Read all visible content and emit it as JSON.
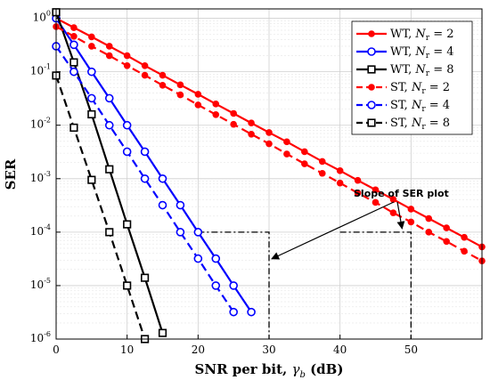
{
  "chart_data": {
    "type": "line",
    "xlabel_main": "SNR per bit, ",
    "xlabel_sym": "γ",
    "xlabel_sub": "b",
    "xlabel_unit": " (dB)",
    "ylabel": "SER",
    "xlim": [
      0,
      60
    ],
    "ylim": [
      1e-06,
      1.5
    ],
    "yscale": "log",
    "grid": true,
    "legend_position": "top-right",
    "x_ticks": [
      "0",
      "10",
      "20",
      "30",
      "40",
      "50"
    ],
    "y_ticks": [
      {
        "base": "10",
        "exp": "0"
      },
      {
        "base": "10",
        "exp": "-1"
      },
      {
        "base": "10",
        "exp": "-2"
      },
      {
        "base": "10",
        "exp": "-3"
      },
      {
        "base": "10",
        "exp": "-4"
      },
      {
        "base": "10",
        "exp": "-5"
      },
      {
        "base": "10",
        "exp": "-6"
      }
    ],
    "series": [
      {
        "name": "WT, Nr = 2",
        "prefix": "WT, ",
        "sub": "r",
        "val": "2",
        "color": "#ff0000",
        "dash": false,
        "marker": "dot",
        "x": [
          0,
          2.5,
          5,
          7.5,
          10,
          12.5,
          15,
          17.5,
          20,
          22.5,
          25,
          27.5,
          30,
          32.5,
          35,
          37.5,
          40,
          42.5,
          45,
          47.5,
          50,
          52.5,
          55,
          57.5,
          60
        ],
        "y": [
          1.0,
          0.67,
          0.45,
          0.3,
          0.2,
          0.13,
          0.086,
          0.057,
          0.038,
          0.025,
          0.0166,
          0.011,
          0.0073,
          0.0049,
          0.0032,
          0.0021,
          0.00141,
          0.00093,
          0.00062,
          0.00041,
          0.00027,
          0.00018,
          0.00012,
          8e-05,
          5.3e-05
        ]
      },
      {
        "name": "WT, Nr = 4",
        "prefix": "WT, ",
        "sub": "r",
        "val": "4",
        "color": "#0000ff",
        "dash": false,
        "marker": "circle",
        "x": [
          0,
          2.5,
          5,
          7.5,
          10,
          12.5,
          15,
          17.5,
          20,
          22.5,
          25,
          27.5
        ],
        "y": [
          1.0,
          0.32,
          0.1,
          0.032,
          0.01,
          0.0032,
          0.001,
          0.00032,
          0.0001,
          3.2e-05,
          1e-05,
          3.2e-06
        ]
      },
      {
        "name": "WT, Nr = 8",
        "prefix": "WT, ",
        "sub": "r",
        "val": "8",
        "color": "#000000",
        "dash": false,
        "marker": "square",
        "x": [
          0,
          2.5,
          5,
          7.5,
          10,
          12.5,
          15
        ],
        "y": [
          1.3,
          0.15,
          0.016,
          0.0015,
          0.00014,
          1.4e-05,
          1.3e-06
        ]
      },
      {
        "name": "ST, Nr = 2",
        "prefix": "ST, ",
        "sub": "r",
        "val": "2",
        "color": "#ff0000",
        "dash": true,
        "marker": "dot",
        "x": [
          0,
          2.5,
          5,
          7.5,
          10,
          12.5,
          15,
          17.5,
          20,
          22.5,
          25,
          27.5,
          30,
          32.5,
          35,
          37.5,
          40,
          42.5,
          45,
          47.5,
          50,
          52.5,
          55,
          57.5,
          60
        ],
        "y": [
          0.7,
          0.46,
          0.3,
          0.2,
          0.13,
          0.086,
          0.056,
          0.037,
          0.024,
          0.0158,
          0.0104,
          0.0068,
          0.0045,
          0.0029,
          0.0019,
          0.00126,
          0.00083,
          0.00054,
          0.00036,
          0.00023,
          0.000155,
          0.0001,
          6.7e-05,
          4.4e-05,
          2.9e-05
        ]
      },
      {
        "name": "ST, Nr = 4",
        "prefix": "ST, ",
        "sub": "r",
        "val": "4",
        "color": "#0000ff",
        "dash": true,
        "marker": "circle",
        "x": [
          0,
          2.5,
          5,
          7.5,
          10,
          12.5,
          15,
          17.5,
          20,
          22.5,
          25
        ],
        "y": [
          0.3,
          0.1,
          0.032,
          0.01,
          0.0032,
          0.001,
          0.00032,
          0.0001,
          3.2e-05,
          1e-05,
          3.2e-06
        ]
      },
      {
        "name": "ST, Nr = 8",
        "prefix": "ST, ",
        "sub": "r",
        "val": "8",
        "color": "#000000",
        "dash": true,
        "marker": "square",
        "x": [
          0,
          2.5,
          5,
          7.5,
          10,
          12.5
        ],
        "y": [
          0.085,
          0.009,
          0.00095,
          0.0001,
          1e-05,
          1e-06
        ]
      }
    ],
    "annotation": {
      "text": "Slope of SER plot"
    },
    "slope_triangles": [
      {
        "x1": 20,
        "x2": 30,
        "ylevel": 0.0001
      },
      {
        "x1": 40,
        "x2": 50,
        "ylevel": 0.0001
      }
    ]
  }
}
